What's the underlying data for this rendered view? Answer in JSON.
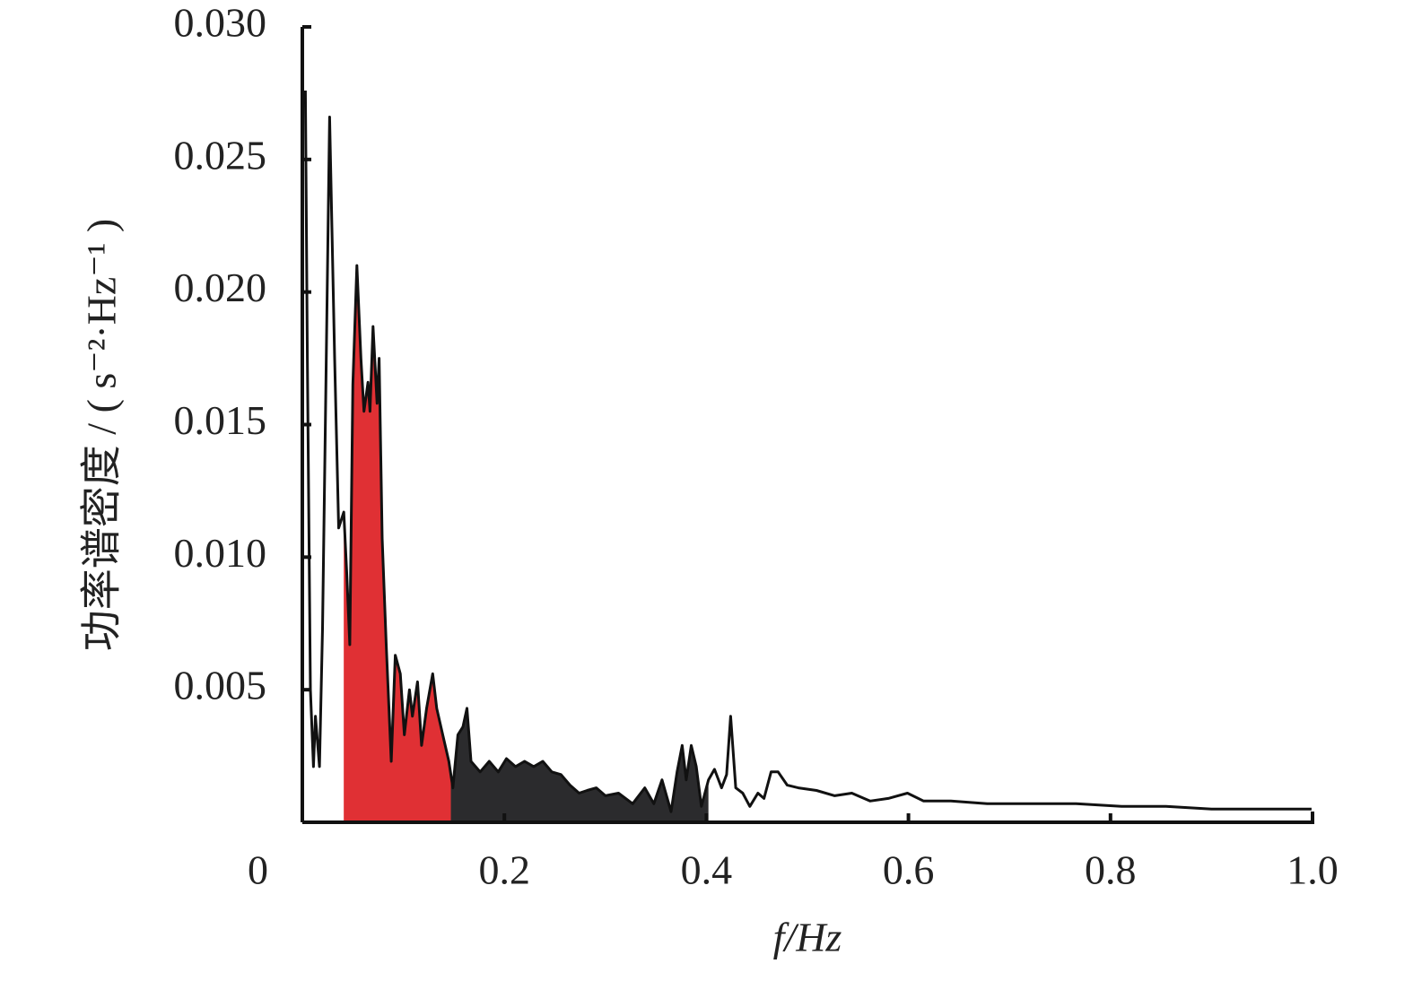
{
  "chart_data": {
    "type": "line",
    "x_label": "f/Hz",
    "y_label": "功率谱密度 / ( s⁻²·Hz⁻¹ )",
    "xlim": [
      0,
      1
    ],
    "ylim": [
      0,
      0.03
    ],
    "xticks": [
      0,
      0.2,
      0.4,
      0.6,
      0.8,
      {
        "value": 1,
        "label": "1.0"
      }
    ],
    "yticks": [
      {
        "value": 0.005,
        "label": "0.005"
      },
      {
        "value": 0.01,
        "label": "0.010"
      },
      0.015,
      {
        "value": 0.02,
        "label": "0.020"
      },
      0.025,
      {
        "value": 0.03,
        "label": "0.030"
      }
    ],
    "bands": [
      {
        "from": 0.041,
        "to": 0.147,
        "color": "#e03034"
      },
      {
        "from": 0.147,
        "to": 0.402,
        "color": "#2b2b2d"
      }
    ],
    "series": [
      {
        "color": "#111111",
        "x": [
          0.003,
          0.005,
          0.008,
          0.011,
          0.013,
          0.017,
          0.02,
          0.027,
          0.032,
          0.036,
          0.041,
          0.044,
          0.047,
          0.05,
          0.054,
          0.058,
          0.061,
          0.065,
          0.067,
          0.07,
          0.074,
          0.076,
          0.079,
          0.083,
          0.088,
          0.092,
          0.097,
          0.101,
          0.106,
          0.109,
          0.114,
          0.118,
          0.123,
          0.129,
          0.133,
          0.139,
          0.145,
          0.149,
          0.154,
          0.159,
          0.163,
          0.167,
          0.176,
          0.185,
          0.194,
          0.202,
          0.211,
          0.22,
          0.229,
          0.238,
          0.247,
          0.256,
          0.265,
          0.274,
          0.282,
          0.291,
          0.3,
          0.313,
          0.327,
          0.339,
          0.348,
          0.356,
          0.365,
          0.371,
          0.376,
          0.38,
          0.385,
          0.39,
          0.395,
          0.402,
          0.408,
          0.415,
          0.42,
          0.424,
          0.429,
          0.436,
          0.443,
          0.451,
          0.457,
          0.464,
          0.471,
          0.48,
          0.491,
          0.509,
          0.527,
          0.544,
          0.562,
          0.58,
          0.599,
          0.615,
          0.642,
          0.678,
          0.722,
          0.766,
          0.811,
          0.855,
          0.9,
          0.944,
          0.999
        ],
        "values": [
          0.0276,
          0.0175,
          0.005,
          0.0021,
          0.004,
          0.0021,
          0.0073,
          0.0266,
          0.0175,
          0.0111,
          0.0117,
          0.0094,
          0.0067,
          0.0165,
          0.021,
          0.0175,
          0.0155,
          0.0166,
          0.0155,
          0.0187,
          0.0158,
          0.0175,
          0.0107,
          0.0067,
          0.0023,
          0.0063,
          0.0056,
          0.0033,
          0.005,
          0.004,
          0.0053,
          0.0029,
          0.0043,
          0.0056,
          0.0043,
          0.0033,
          0.0023,
          0.0013,
          0.0033,
          0.0036,
          0.0043,
          0.0023,
          0.0019,
          0.0023,
          0.0019,
          0.0024,
          0.0021,
          0.0023,
          0.0021,
          0.0023,
          0.0019,
          0.0018,
          0.0014,
          0.0011,
          0.0012,
          0.0013,
          0.001,
          0.0011,
          0.0007,
          0.0013,
          0.0007,
          0.0016,
          0.0004,
          0.0019,
          0.0029,
          0.0016,
          0.0029,
          0.0021,
          0.0006,
          0.0016,
          0.002,
          0.0013,
          0.0018,
          0.004,
          0.0013,
          0.0011,
          0.0006,
          0.0011,
          0.0009,
          0.0019,
          0.0019,
          0.0014,
          0.0013,
          0.0012,
          0.001,
          0.0011,
          0.0008,
          0.0009,
          0.0011,
          0.0008,
          0.0008,
          0.0007,
          0.0007,
          0.0007,
          0.0006,
          0.0006,
          0.0005,
          0.0005,
          0.0005
        ]
      }
    ]
  }
}
